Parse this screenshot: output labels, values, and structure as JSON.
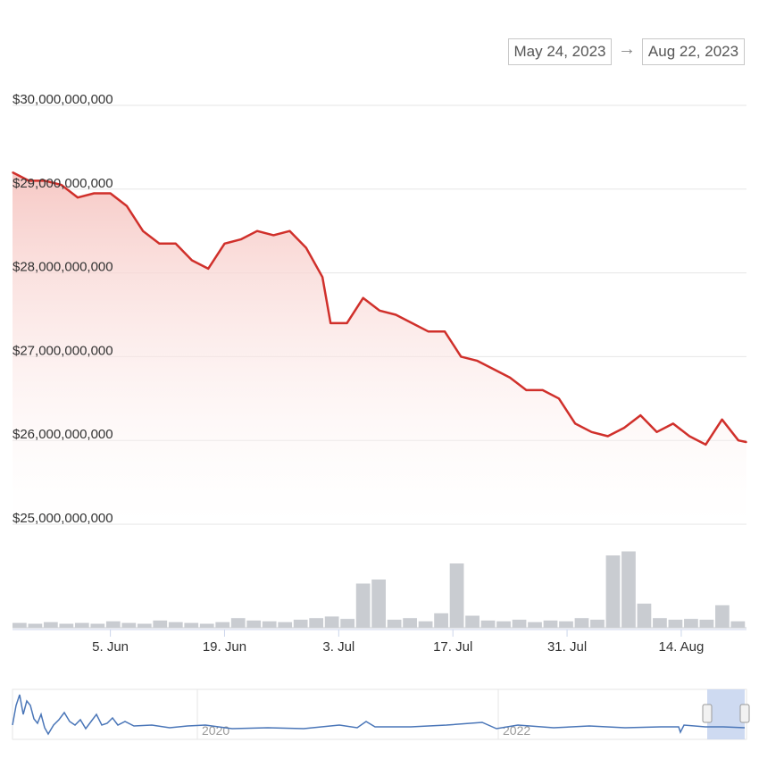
{
  "range": {
    "from": "May 24, 2023",
    "arrow": "→",
    "to": "Aug 22, 2023"
  },
  "colors": {
    "line": "#d0302b",
    "area_top": "#f6c6c2",
    "volume": "#c9ccd1",
    "navigator_line": "#4a76b8",
    "navigator_mask": "#c6d4ee"
  },
  "chart_data": {
    "type": "area",
    "title": "",
    "xlabel": "",
    "ylabel": "",
    "ylim": [
      25000000000,
      30000000000
    ],
    "y_ticks": [
      "$30,000,000,000",
      "$29,000,000,000",
      "$28,000,000,000",
      "$27,000,000,000",
      "$26,000,000,000",
      "$25,000,000,000"
    ],
    "y_tick_values": [
      30000000000,
      29000000000,
      28000000000,
      27000000000,
      26000000000,
      25000000000
    ],
    "x_ticks": [
      "5. Jun",
      "19. Jun",
      "3. Jul",
      "17. Jul",
      "31. Jul",
      "14. Aug"
    ],
    "x_tick_dates": [
      "2023-06-05",
      "2023-06-19",
      "2023-07-03",
      "2023-07-17",
      "2023-07-31",
      "2023-08-14"
    ],
    "grid": true,
    "series": [
      {
        "values_kind": "market cap (USD)",
        "x": [
          "2023-05-24",
          "2023-05-26",
          "2023-05-28",
          "2023-05-30",
          "2023-06-01",
          "2023-06-03",
          "2023-06-05",
          "2023-06-07",
          "2023-06-09",
          "2023-06-11",
          "2023-06-13",
          "2023-06-15",
          "2023-06-17",
          "2023-06-19",
          "2023-06-21",
          "2023-06-23",
          "2023-06-25",
          "2023-06-27",
          "2023-06-29",
          "2023-07-01",
          "2023-07-02",
          "2023-07-04",
          "2023-07-06",
          "2023-07-08",
          "2023-07-10",
          "2023-07-12",
          "2023-07-14",
          "2023-07-16",
          "2023-07-18",
          "2023-07-20",
          "2023-07-22",
          "2023-07-24",
          "2023-07-26",
          "2023-07-28",
          "2023-07-30",
          "2023-08-01",
          "2023-08-03",
          "2023-08-05",
          "2023-08-07",
          "2023-08-09",
          "2023-08-11",
          "2023-08-13",
          "2023-08-15",
          "2023-08-17",
          "2023-08-19",
          "2023-08-21",
          "2023-08-22"
        ],
        "y": [
          29200000000,
          29100000000,
          29100000000,
          29050000000,
          28900000000,
          28950000000,
          28950000000,
          28800000000,
          28500000000,
          28350000000,
          28350000000,
          28150000000,
          28050000000,
          28350000000,
          28400000000,
          28500000000,
          28450000000,
          28500000000,
          28300000000,
          27950000000,
          27400000000,
          27400000000,
          27700000000,
          27550000000,
          27500000000,
          27400000000,
          27300000000,
          27300000000,
          27000000000,
          26950000000,
          26850000000,
          26750000000,
          26600000000,
          26600000000,
          26500000000,
          26200000000,
          26100000000,
          26050000000,
          26150000000,
          26300000000,
          26100000000,
          26200000000,
          26050000000,
          25950000000,
          26250000000,
          26000000000,
          25980000000
        ]
      }
    ],
    "volume_relative": [
      0.06,
      0.05,
      0.07,
      0.05,
      0.06,
      0.05,
      0.08,
      0.06,
      0.05,
      0.09,
      0.07,
      0.06,
      0.05,
      0.07,
      0.12,
      0.09,
      0.08,
      0.07,
      0.1,
      0.12,
      0.14,
      0.11,
      0.55,
      0.6,
      0.1,
      0.12,
      0.08,
      0.18,
      0.8,
      0.15,
      0.09,
      0.08,
      0.1,
      0.07,
      0.09,
      0.08,
      0.12,
      0.1,
      0.9,
      0.95,
      0.3,
      0.12,
      0.1,
      0.11,
      0.1,
      0.28,
      0.08
    ],
    "navigator": {
      "x_ticks": [
        "2020",
        "2022"
      ]
    }
  }
}
